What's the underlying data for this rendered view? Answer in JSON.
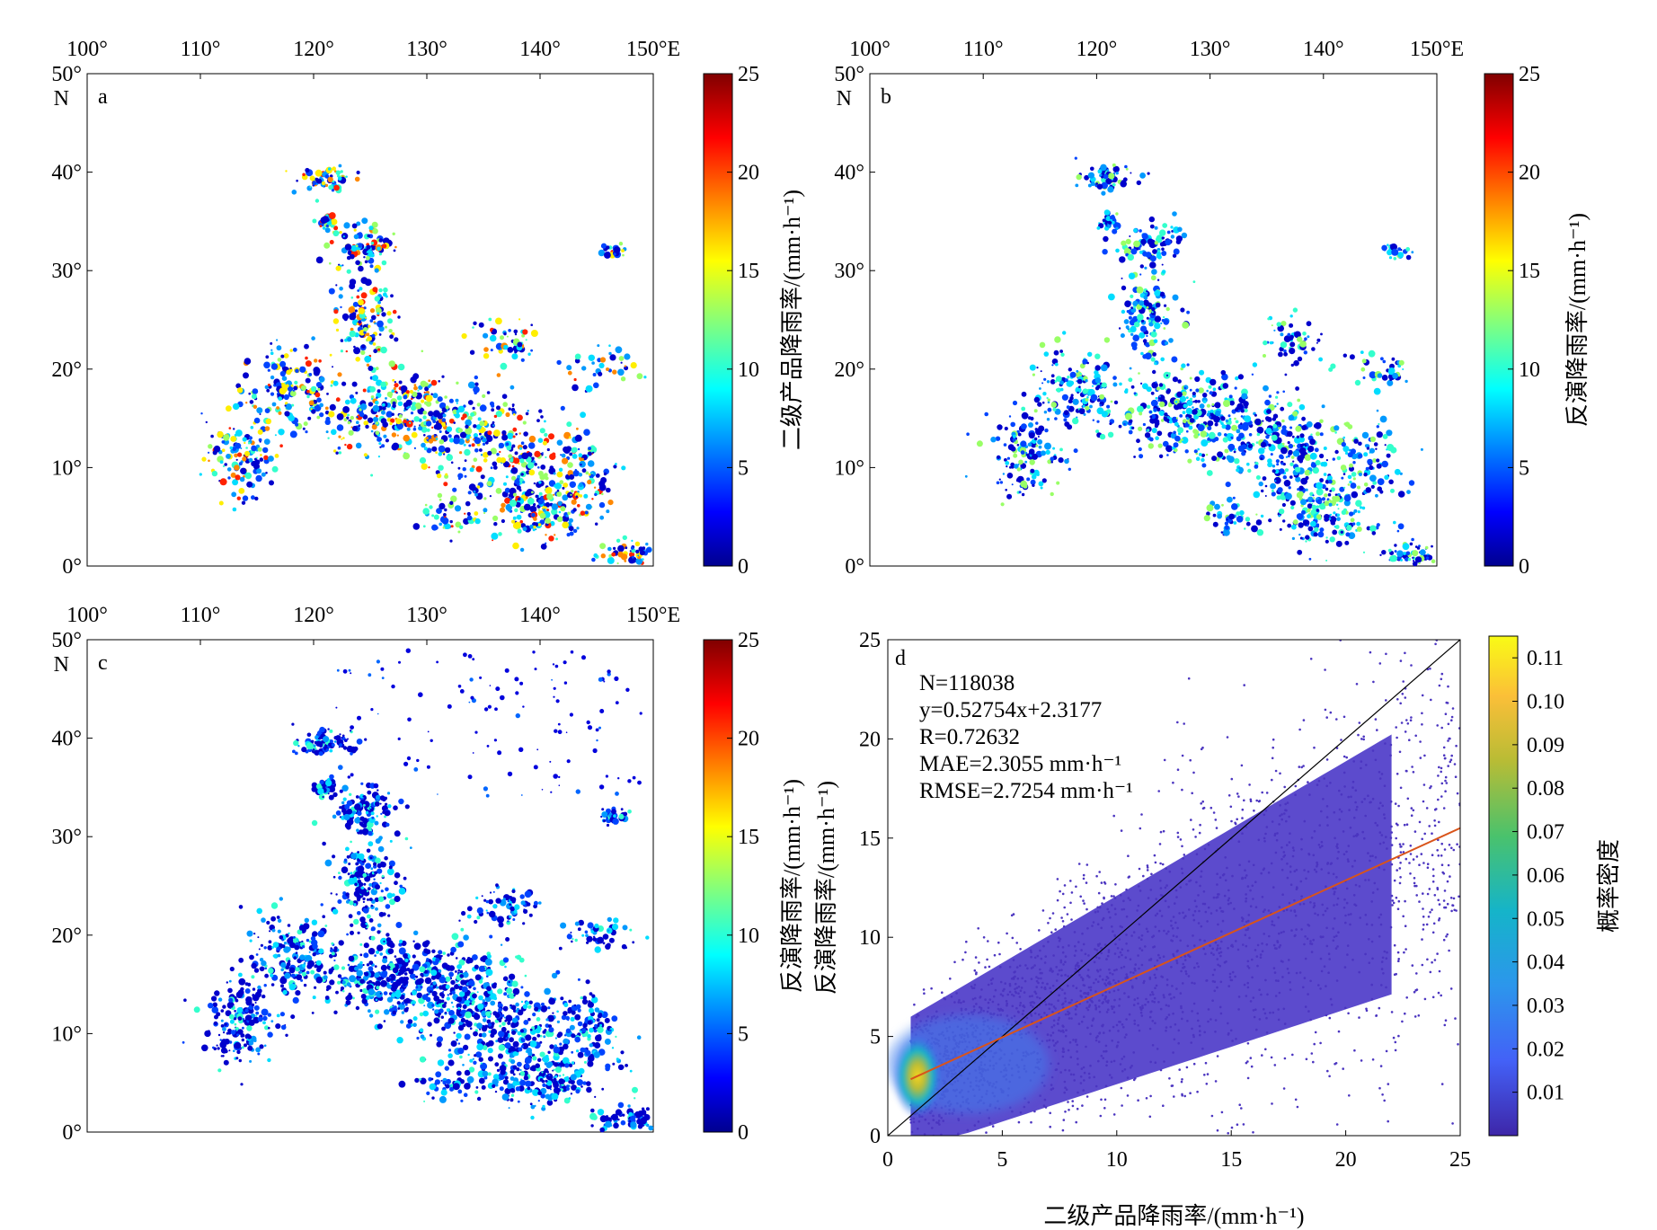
{
  "chart_data": [
    {
      "type": "heatmap",
      "panel_label": "a",
      "map": {
        "lon_ticks": [
          "100°",
          "110°",
          "120°",
          "130°",
          "140°",
          "150°E"
        ],
        "lat_ticks": [
          "50°",
          "40°",
          "30°",
          "20°",
          "10°",
          "0°"
        ],
        "lat_unit": "N",
        "lon_range": [
          100,
          150
        ],
        "lat_range": [
          0,
          50
        ]
      },
      "colorbar": {
        "label": "二级产品降雨率/(mm·h⁻¹)",
        "ticks": [
          "25",
          "20",
          "15",
          "10",
          "5",
          "0"
        ],
        "range": [
          0,
          25
        ]
      }
    },
    {
      "type": "heatmap",
      "panel_label": "b",
      "map": {
        "lon_ticks": [
          "100°",
          "110°",
          "120°",
          "130°",
          "140°",
          "150°E"
        ],
        "lat_ticks": [
          "50°",
          "40°",
          "30°",
          "20°",
          "10°",
          "0°"
        ],
        "lat_unit": "N",
        "lon_range": [
          100,
          150
        ],
        "lat_range": [
          0,
          50
        ]
      },
      "colorbar": {
        "label": "反演降雨率/(mm·h⁻¹)",
        "ticks": [
          "25",
          "20",
          "15",
          "10",
          "5",
          "0"
        ],
        "range": [
          0,
          25
        ]
      }
    },
    {
      "type": "heatmap",
      "panel_label": "c",
      "map": {
        "lon_ticks": [
          "100°",
          "110°",
          "120°",
          "130°",
          "140°",
          "150°E"
        ],
        "lat_ticks": [
          "50°",
          "40°",
          "30°",
          "20°",
          "10°",
          "0°"
        ],
        "lat_unit": "N",
        "lon_range": [
          100,
          150
        ],
        "lat_range": [
          0,
          50
        ]
      },
      "colorbar": {
        "label": "反演降雨率/(mm·h⁻¹)",
        "ticks": [
          "25",
          "20",
          "15",
          "10",
          "5",
          "0"
        ],
        "range": [
          0,
          25
        ]
      }
    },
    {
      "type": "scatter",
      "panel_label": "d",
      "xlabel": "二级产品降雨率/(mm·h⁻¹)",
      "ylabel": "反演降雨率/(mm·h⁻¹)",
      "xlim": [
        0,
        25
      ],
      "ylim": [
        0,
        25
      ],
      "xticks": [
        "0",
        "5",
        "10",
        "15",
        "20",
        "25"
      ],
      "yticks": [
        "0",
        "5",
        "10",
        "15",
        "20",
        "25"
      ],
      "stats": {
        "n": "N=118038",
        "fit": "y=0.52754x+2.3177",
        "r": "R=0.72632",
        "mae": "MAE=2.3055 mm·h⁻¹",
        "rmse": "RMSE=2.7254 mm·h⁻¹"
      },
      "lines": {
        "identity": {
          "slope": 1,
          "intercept": 0,
          "x": [
            0,
            25
          ],
          "color": "#000000"
        },
        "fit": {
          "slope": 0.52754,
          "intercept": 2.3177,
          "x": [
            1,
            25
          ],
          "color": "#d9541a"
        }
      },
      "point_count": 118038,
      "density_peak": {
        "x": 1.3,
        "y": 3.0
      },
      "colorbar": {
        "label": "概率密度",
        "ticks": [
          "0.11",
          "0.10",
          "0.09",
          "0.08",
          "0.07",
          "0.06",
          "0.05",
          "0.04",
          "0.03",
          "0.02",
          "0.01"
        ],
        "range": [
          0,
          0.115
        ],
        "colors": [
          "#3e26a8",
          "#4361f7",
          "#2c96ec",
          "#15b4c9",
          "#4ac26c",
          "#b8bc35",
          "#fbbf38",
          "#f9fb15"
        ]
      }
    }
  ]
}
